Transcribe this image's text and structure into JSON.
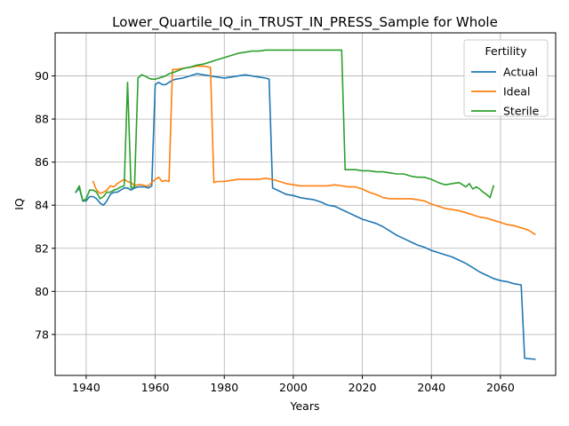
{
  "chart_data": {
    "type": "line",
    "title": "Lower_Quartile_IQ_in_TRUST_IN_PRESS_Sample for Whole",
    "xlabel": "Years",
    "ylabel": "IQ",
    "xlim": [
      1931,
      2076
    ],
    "ylim": [
      76.1,
      92.0
    ],
    "xticks": [
      1940,
      1960,
      1980,
      2000,
      2020,
      2040,
      2060
    ],
    "yticks": [
      78,
      80,
      82,
      84,
      86,
      88,
      90
    ],
    "grid": true,
    "legend": {
      "title": "Fertility",
      "placement": "top-right"
    },
    "series": [
      {
        "name": "Actual",
        "color": "#1f77b4",
        "points": [
          [
            1937,
            84.6
          ],
          [
            1938,
            84.8
          ],
          [
            1939,
            84.2
          ],
          [
            1940,
            84.2
          ],
          [
            1941,
            84.4
          ],
          [
            1942,
            84.4
          ],
          [
            1943,
            84.3
          ],
          [
            1944,
            84.1
          ],
          [
            1945,
            84.0
          ],
          [
            1946,
            84.2
          ],
          [
            1947,
            84.5
          ],
          [
            1948,
            84.6
          ],
          [
            1949,
            84.6
          ],
          [
            1950,
            84.7
          ],
          [
            1951,
            84.8
          ],
          [
            1952,
            84.8
          ],
          [
            1953,
            84.7
          ],
          [
            1954,
            84.8
          ],
          [
            1955,
            84.85
          ],
          [
            1956,
            84.85
          ],
          [
            1957,
            84.85
          ],
          [
            1958,
            84.8
          ],
          [
            1959,
            84.9
          ],
          [
            1960,
            89.6
          ],
          [
            1961,
            89.7
          ],
          [
            1962,
            89.6
          ],
          [
            1963,
            89.6
          ],
          [
            1964,
            89.7
          ],
          [
            1965,
            89.8
          ],
          [
            1966,
            89.85
          ],
          [
            1968,
            89.9
          ],
          [
            1970,
            90.0
          ],
          [
            1972,
            90.1
          ],
          [
            1974,
            90.05
          ],
          [
            1976,
            90.0
          ],
          [
            1978,
            89.95
          ],
          [
            1980,
            89.9
          ],
          [
            1982,
            89.95
          ],
          [
            1984,
            90.0
          ],
          [
            1986,
            90.05
          ],
          [
            1988,
            90.0
          ],
          [
            1990,
            89.95
          ],
          [
            1992,
            89.9
          ],
          [
            1993,
            89.85
          ],
          [
            1994,
            84.8
          ],
          [
            1996,
            84.65
          ],
          [
            1998,
            84.5
          ],
          [
            2000,
            84.45
          ],
          [
            2002,
            84.35
          ],
          [
            2004,
            84.3
          ],
          [
            2006,
            84.25
          ],
          [
            2008,
            84.15
          ],
          [
            2010,
            84.0
          ],
          [
            2012,
            83.95
          ],
          [
            2014,
            83.8
          ],
          [
            2016,
            83.65
          ],
          [
            2018,
            83.5
          ],
          [
            2020,
            83.35
          ],
          [
            2022,
            83.25
          ],
          [
            2024,
            83.15
          ],
          [
            2026,
            83.0
          ],
          [
            2028,
            82.8
          ],
          [
            2030,
            82.6
          ],
          [
            2032,
            82.45
          ],
          [
            2034,
            82.3
          ],
          [
            2036,
            82.15
          ],
          [
            2038,
            82.05
          ],
          [
            2040,
            81.9
          ],
          [
            2042,
            81.8
          ],
          [
            2044,
            81.7
          ],
          [
            2046,
            81.6
          ],
          [
            2048,
            81.45
          ],
          [
            2050,
            81.3
          ],
          [
            2052,
            81.1
          ],
          [
            2054,
            80.9
          ],
          [
            2056,
            80.75
          ],
          [
            2058,
            80.6
          ],
          [
            2060,
            80.5
          ],
          [
            2062,
            80.45
          ],
          [
            2064,
            80.35
          ],
          [
            2066,
            80.3
          ],
          [
            2067,
            76.9
          ],
          [
            2068,
            76.88
          ],
          [
            2070,
            76.85
          ]
        ]
      },
      {
        "name": "Ideal",
        "color": "#ff7f0e",
        "points": [
          [
            1942,
            85.1
          ],
          [
            1943,
            84.7
          ],
          [
            1944,
            84.55
          ],
          [
            1945,
            84.6
          ],
          [
            1946,
            84.7
          ],
          [
            1947,
            84.9
          ],
          [
            1948,
            84.85
          ],
          [
            1949,
            85.0
          ],
          [
            1950,
            85.1
          ],
          [
            1951,
            85.2
          ],
          [
            1952,
            85.1
          ],
          [
            1953,
            85.05
          ],
          [
            1954,
            84.9
          ],
          [
            1955,
            84.95
          ],
          [
            1956,
            84.95
          ],
          [
            1957,
            84.9
          ],
          [
            1958,
            84.9
          ],
          [
            1959,
            85.05
          ],
          [
            1960,
            85.2
          ],
          [
            1961,
            85.3
          ],
          [
            1962,
            85.1
          ],
          [
            1963,
            85.15
          ],
          [
            1964,
            85.1
          ],
          [
            1965,
            90.3
          ],
          [
            1966,
            90.3
          ],
          [
            1968,
            90.35
          ],
          [
            1970,
            90.4
          ],
          [
            1972,
            90.45
          ],
          [
            1974,
            90.45
          ],
          [
            1976,
            90.4
          ],
          [
            1977,
            85.05
          ],
          [
            1978,
            85.1
          ],
          [
            1980,
            85.1
          ],
          [
            1982,
            85.15
          ],
          [
            1984,
            85.2
          ],
          [
            1986,
            85.2
          ],
          [
            1988,
            85.2
          ],
          [
            1990,
            85.2
          ],
          [
            1992,
            85.25
          ],
          [
            1994,
            85.2
          ],
          [
            1996,
            85.1
          ],
          [
            1998,
            85.0
          ],
          [
            2000,
            84.95
          ],
          [
            2002,
            84.9
          ],
          [
            2004,
            84.9
          ],
          [
            2006,
            84.9
          ],
          [
            2008,
            84.9
          ],
          [
            2010,
            84.9
          ],
          [
            2012,
            84.95
          ],
          [
            2014,
            84.9
          ],
          [
            2016,
            84.85
          ],
          [
            2018,
            84.85
          ],
          [
            2020,
            84.75
          ],
          [
            2022,
            84.6
          ],
          [
            2024,
            84.5
          ],
          [
            2026,
            84.35
          ],
          [
            2028,
            84.3
          ],
          [
            2030,
            84.3
          ],
          [
            2032,
            84.3
          ],
          [
            2034,
            84.3
          ],
          [
            2036,
            84.25
          ],
          [
            2038,
            84.2
          ],
          [
            2040,
            84.05
          ],
          [
            2042,
            83.95
          ],
          [
            2044,
            83.85
          ],
          [
            2046,
            83.8
          ],
          [
            2048,
            83.75
          ],
          [
            2050,
            83.65
          ],
          [
            2052,
            83.55
          ],
          [
            2054,
            83.45
          ],
          [
            2056,
            83.4
          ],
          [
            2058,
            83.3
          ],
          [
            2060,
            83.2
          ],
          [
            2062,
            83.1
          ],
          [
            2064,
            83.05
          ],
          [
            2066,
            82.95
          ],
          [
            2068,
            82.85
          ],
          [
            2070,
            82.65
          ]
        ]
      },
      {
        "name": "Sterile",
        "color": "#2ca02c",
        "points": [
          [
            1937,
            84.6
          ],
          [
            1938,
            84.9
          ],
          [
            1939,
            84.2
          ],
          [
            1940,
            84.3
          ],
          [
            1941,
            84.7
          ],
          [
            1942,
            84.7
          ],
          [
            1943,
            84.6
          ],
          [
            1944,
            84.3
          ],
          [
            1945,
            84.4
          ],
          [
            1946,
            84.6
          ],
          [
            1947,
            84.6
          ],
          [
            1948,
            84.7
          ],
          [
            1949,
            84.75
          ],
          [
            1950,
            84.85
          ],
          [
            1951,
            84.9
          ],
          [
            1952,
            89.7
          ],
          [
            1953,
            84.8
          ],
          [
            1954,
            84.85
          ],
          [
            1955,
            89.9
          ],
          [
            1956,
            90.05
          ],
          [
            1957,
            90.0
          ],
          [
            1958,
            89.9
          ],
          [
            1959,
            89.85
          ],
          [
            1960,
            89.85
          ],
          [
            1961,
            89.9
          ],
          [
            1962,
            89.95
          ],
          [
            1963,
            90.0
          ],
          [
            1964,
            90.1
          ],
          [
            1966,
            90.2
          ],
          [
            1968,
            90.35
          ],
          [
            1970,
            90.4
          ],
          [
            1972,
            90.5
          ],
          [
            1974,
            90.55
          ],
          [
            1976,
            90.65
          ],
          [
            1978,
            90.75
          ],
          [
            1980,
            90.85
          ],
          [
            1982,
            90.95
          ],
          [
            1984,
            91.05
          ],
          [
            1986,
            91.1
          ],
          [
            1988,
            91.15
          ],
          [
            1990,
            91.15
          ],
          [
            1992,
            91.2
          ],
          [
            1994,
            91.2
          ],
          [
            1996,
            91.2
          ],
          [
            1998,
            91.2
          ],
          [
            2000,
            91.2
          ],
          [
            2002,
            91.2
          ],
          [
            2004,
            91.2
          ],
          [
            2006,
            91.2
          ],
          [
            2008,
            91.2
          ],
          [
            2010,
            91.2
          ],
          [
            2012,
            91.2
          ],
          [
            2014,
            91.2
          ],
          [
            2015,
            85.65
          ],
          [
            2016,
            85.65
          ],
          [
            2018,
            85.65
          ],
          [
            2020,
            85.6
          ],
          [
            2022,
            85.6
          ],
          [
            2024,
            85.55
          ],
          [
            2026,
            85.55
          ],
          [
            2028,
            85.5
          ],
          [
            2030,
            85.45
          ],
          [
            2032,
            85.45
          ],
          [
            2034,
            85.35
          ],
          [
            2036,
            85.3
          ],
          [
            2038,
            85.3
          ],
          [
            2040,
            85.2
          ],
          [
            2042,
            85.05
          ],
          [
            2044,
            84.95
          ],
          [
            2046,
            85.0
          ],
          [
            2048,
            85.05
          ],
          [
            2050,
            84.85
          ],
          [
            2051,
            85.0
          ],
          [
            2052,
            84.75
          ],
          [
            2053,
            84.85
          ],
          [
            2054,
            84.75
          ],
          [
            2055,
            84.6
          ],
          [
            2056,
            84.5
          ],
          [
            2057,
            84.35
          ],
          [
            2058,
            84.9
          ]
        ]
      }
    ]
  }
}
